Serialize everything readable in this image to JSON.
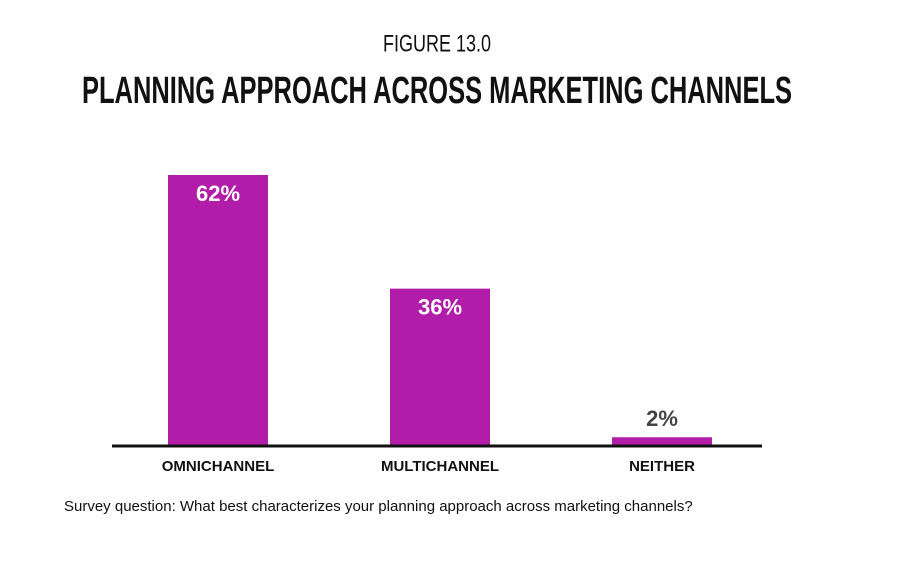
{
  "chart_data": {
    "type": "bar",
    "subtitle": "FIGURE 13.0",
    "title": "PLANNING APPROACH ACROSS MARKETING CHANNELS",
    "categories": [
      "OMNICHANNEL",
      "MULTICHANNEL",
      "NEITHER"
    ],
    "values": [
      62,
      36,
      2
    ],
    "value_labels": [
      "62%",
      "36%",
      "2%"
    ],
    "color": "#b11ca9",
    "note": "Survey question: What best characterizes your planning approach across marketing channels?"
  }
}
